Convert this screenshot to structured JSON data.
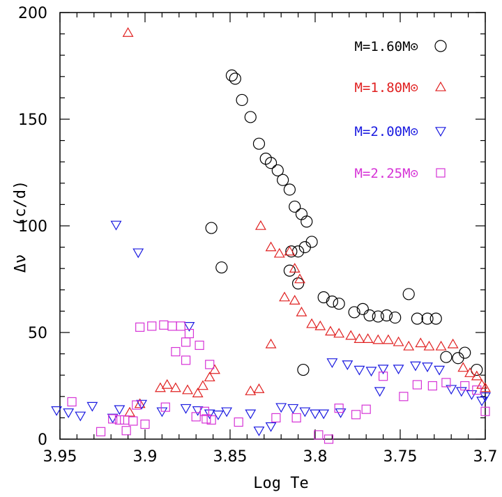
{
  "chart_data": {
    "type": "scatter",
    "title": "",
    "xlabel": "Log Te",
    "ylabel": "Δν   (c/d)",
    "xlim": [
      3.95,
      3.7
    ],
    "ylim": [
      0,
      200
    ],
    "x_ticks": [
      "3.95",
      "3.9",
      "3.85",
      "3.8",
      "3.75",
      "3.7"
    ],
    "y_ticks": [
      "0",
      "50",
      "100",
      "150",
      "200"
    ],
    "grid": false,
    "legend_position": "top-right",
    "series": [
      {
        "name": "M=1.60M⊙",
        "marker": "circle",
        "color": "#000000",
        "points": [
          [
            3.849,
            170.5
          ],
          [
            3.847,
            169
          ],
          [
            3.843,
            159
          ],
          [
            3.838,
            151
          ],
          [
            3.833,
            138.5
          ],
          [
            3.829,
            131.5
          ],
          [
            3.826,
            129.5
          ],
          [
            3.822,
            126
          ],
          [
            3.819,
            121.5
          ],
          [
            3.815,
            117
          ],
          [
            3.812,
            109
          ],
          [
            3.808,
            105.5
          ],
          [
            3.805,
            102
          ],
          [
            3.802,
            92.5
          ],
          [
            3.806,
            90
          ],
          [
            3.814,
            88
          ],
          [
            3.81,
            88
          ],
          [
            3.815,
            79
          ],
          [
            3.81,
            73
          ],
          [
            3.795,
            66.5
          ],
          [
            3.79,
            64.5
          ],
          [
            3.786,
            63.5
          ],
          [
            3.777,
            59.5
          ],
          [
            3.772,
            61
          ],
          [
            3.768,
            58
          ],
          [
            3.763,
            57.5
          ],
          [
            3.758,
            58
          ],
          [
            3.753,
            57
          ],
          [
            3.745,
            68
          ],
          [
            3.74,
            56.5
          ],
          [
            3.734,
            56.5
          ],
          [
            3.729,
            56.5
          ],
          [
            3.723,
            38.5
          ],
          [
            3.716,
            38
          ],
          [
            3.712,
            40.5
          ],
          [
            3.705,
            32.5
          ],
          [
            3.861,
            99
          ],
          [
            3.855,
            80.5
          ],
          [
            3.807,
            32.5
          ]
        ]
      },
      {
        "name": "M=1.80M⊙",
        "marker": "triangle-up",
        "color": "#e02020",
        "points": [
          [
            3.91,
            190.5
          ],
          [
            3.832,
            100
          ],
          [
            3.826,
            90
          ],
          [
            3.821,
            87
          ],
          [
            3.815,
            88
          ],
          [
            3.812,
            80
          ],
          [
            3.809,
            75
          ],
          [
            3.818,
            66.5
          ],
          [
            3.812,
            65
          ],
          [
            3.808,
            59.5
          ],
          [
            3.802,
            54
          ],
          [
            3.797,
            53
          ],
          [
            3.791,
            50.5
          ],
          [
            3.786,
            49.5
          ],
          [
            3.779,
            48.5
          ],
          [
            3.774,
            47
          ],
          [
            3.769,
            47
          ],
          [
            3.763,
            46.5
          ],
          [
            3.757,
            46.5
          ],
          [
            3.751,
            45.5
          ],
          [
            3.745,
            43.5
          ],
          [
            3.738,
            45
          ],
          [
            3.733,
            43.5
          ],
          [
            3.726,
            43.5
          ],
          [
            3.719,
            44.5
          ],
          [
            3.713,
            33.5
          ],
          [
            3.709,
            31
          ],
          [
            3.705,
            29.5
          ],
          [
            3.7,
            24
          ],
          [
            3.702,
            25.5
          ],
          [
            3.826,
            44.5
          ],
          [
            3.838,
            22.5
          ],
          [
            3.833,
            23.5
          ],
          [
            3.869,
            21.5
          ],
          [
            3.866,
            25
          ],
          [
            3.862,
            29
          ],
          [
            3.859,
            32.5
          ],
          [
            3.875,
            23
          ],
          [
            3.882,
            24
          ],
          [
            3.887,
            25.5
          ],
          [
            3.891,
            24
          ],
          [
            3.903,
            16.5
          ],
          [
            3.909,
            12.5
          ]
        ]
      },
      {
        "name": "M=2.00M⊙",
        "marker": "triangle-down",
        "color": "#1a1ae0",
        "points": [
          [
            3.917,
            100.5
          ],
          [
            3.904,
            87.5
          ],
          [
            3.874,
            53
          ],
          [
            3.952,
            13.5
          ],
          [
            3.945,
            12.5
          ],
          [
            3.938,
            11
          ],
          [
            3.931,
            15.5
          ],
          [
            3.919,
            10
          ],
          [
            3.915,
            14
          ],
          [
            3.902,
            16.5
          ],
          [
            3.89,
            13
          ],
          [
            3.876,
            14.5
          ],
          [
            3.869,
            13.5
          ],
          [
            3.862,
            12
          ],
          [
            3.857,
            11.5
          ],
          [
            3.852,
            13
          ],
          [
            3.838,
            12
          ],
          [
            3.833,
            4
          ],
          [
            3.826,
            6
          ],
          [
            3.82,
            15
          ],
          [
            3.813,
            14.5
          ],
          [
            3.806,
            13
          ],
          [
            3.8,
            12
          ],
          [
            3.79,
            36
          ],
          [
            3.781,
            35
          ],
          [
            3.774,
            32.5
          ],
          [
            3.767,
            32
          ],
          [
            3.76,
            33
          ],
          [
            3.751,
            33
          ],
          [
            3.741,
            34.5
          ],
          [
            3.734,
            34
          ],
          [
            3.727,
            32.5
          ],
          [
            3.72,
            23.5
          ],
          [
            3.714,
            22.5
          ],
          [
            3.708,
            21
          ],
          [
            3.702,
            18
          ],
          [
            3.7,
            20
          ],
          [
            3.795,
            12
          ],
          [
            3.762,
            22.5
          ],
          [
            3.785,
            12.5
          ]
        ]
      },
      {
        "name": "M=2.25M⊙",
        "marker": "square",
        "color": "#d633d6",
        "points": [
          [
            3.943,
            17.5
          ],
          [
            3.926,
            3.5
          ],
          [
            3.915,
            9
          ],
          [
            3.911,
            4
          ],
          [
            3.903,
            52.5
          ],
          [
            3.896,
            53
          ],
          [
            3.889,
            53.5
          ],
          [
            3.884,
            53
          ],
          [
            3.879,
            53
          ],
          [
            3.876,
            45.5
          ],
          [
            3.874,
            49.5
          ],
          [
            3.882,
            41
          ],
          [
            3.876,
            37
          ],
          [
            3.868,
            44
          ],
          [
            3.862,
            35
          ],
          [
            3.865,
            13
          ],
          [
            3.861,
            9
          ],
          [
            3.864,
            9.5
          ],
          [
            3.87,
            10.5
          ],
          [
            3.888,
            15
          ],
          [
            3.9,
            7
          ],
          [
            3.905,
            16
          ],
          [
            3.919,
            9.5
          ],
          [
            3.912,
            9
          ],
          [
            3.907,
            8.5
          ],
          [
            3.845,
            8
          ],
          [
            3.823,
            10
          ],
          [
            3.811,
            10
          ],
          [
            3.798,
            2
          ],
          [
            3.792,
            0
          ],
          [
            3.786,
            14.5
          ],
          [
            3.776,
            11.5
          ],
          [
            3.77,
            14
          ],
          [
            3.76,
            29.5
          ],
          [
            3.748,
            20
          ],
          [
            3.74,
            25.5
          ],
          [
            3.731,
            25
          ],
          [
            3.723,
            26.5
          ],
          [
            3.712,
            25
          ],
          [
            3.705,
            23
          ],
          [
            3.7,
            13
          ]
        ]
      }
    ]
  }
}
